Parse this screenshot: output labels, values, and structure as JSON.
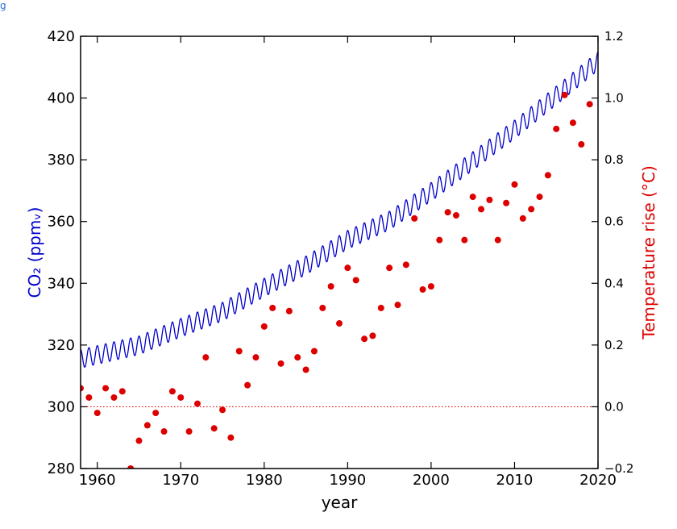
{
  "caption": "g",
  "chart_data": {
    "type": "line",
    "xlabel": "year",
    "ylabel_left": "CO₂ (ppmᵥ)",
    "ylabel_right": "Temperature rise (°C)",
    "xlim": [
      1958,
      2020
    ],
    "ylim_left": [
      280,
      420
    ],
    "ylim_right": [
      -0.2,
      1.2
    ],
    "x_ticks": [
      1960,
      1970,
      1980,
      1990,
      2000,
      2010,
      2020
    ],
    "y_ticks_left": [
      280,
      300,
      320,
      340,
      360,
      380,
      400,
      420
    ],
    "y_ticks_right": [
      -0.2,
      0.0,
      0.2,
      0.4,
      0.6,
      0.8,
      1.0,
      1.2
    ],
    "y_tick_labels_right": [
      "−0.2",
      "0.0",
      "0.2",
      "0.4",
      "0.6",
      "0.8",
      "1.0",
      "1.2"
    ],
    "reference_line": {
      "axis": "right",
      "value": 0.0,
      "style": "dotted",
      "color": "#dd0000"
    },
    "colors": {
      "co2": "#0000cc",
      "temperature": "#dd0000",
      "left_label": "#0000cc",
      "right_label": "#dd0000"
    },
    "series": [
      {
        "axis": "left",
        "style": "line",
        "seasonal_amplitude_ppm": 3,
        "x": [
          1958,
          1960,
          1965,
          1970,
          1975,
          1980,
          1985,
          1990,
          1995,
          2000,
          2005,
          2010,
          2015,
          2020
        ],
        "y": [
          315.5,
          316.8,
          319.9,
          325.6,
          330.8,
          338.6,
          345.8,
          354.1,
          360.3,
          369.6,
          379.6,
          389.8,
          400.8,
          412.0
        ]
      },
      {
        "axis": "right",
        "style": "scatter",
        "x": [
          1958,
          1959,
          1960,
          1961,
          1962,
          1963,
          1964,
          1965,
          1966,
          1967,
          1968,
          1969,
          1970,
          1971,
          1972,
          1973,
          1974,
          1975,
          1976,
          1977,
          1978,
          1979,
          1980,
          1981,
          1982,
          1983,
          1984,
          1985,
          1986,
          1987,
          1988,
          1989,
          1990,
          1991,
          1992,
          1993,
          1994,
          1995,
          1996,
          1997,
          1998,
          1999,
          2000,
          2001,
          2002,
          2003,
          2004,
          2005,
          2006,
          2007,
          2008,
          2009,
          2010,
          2011,
          2012,
          2013,
          2014,
          2015,
          2016,
          2017,
          2018,
          2019
        ],
        "y": [
          0.06,
          0.03,
          -0.02,
          0.06,
          0.03,
          0.05,
          -0.2,
          -0.11,
          -0.06,
          -0.02,
          -0.08,
          0.05,
          0.03,
          -0.08,
          0.01,
          0.16,
          -0.07,
          -0.01,
          -0.1,
          0.18,
          0.07,
          0.16,
          0.26,
          0.32,
          0.14,
          0.31,
          0.16,
          0.12,
          0.18,
          0.32,
          0.39,
          0.27,
          0.45,
          0.41,
          0.22,
          0.23,
          0.32,
          0.45,
          0.33,
          0.46,
          0.61,
          0.38,
          0.39,
          0.54,
          0.63,
          0.62,
          0.54,
          0.68,
          0.64,
          0.67,
          0.54,
          0.66,
          0.72,
          0.61,
          0.64,
          0.68,
          0.75,
          0.9,
          1.01,
          0.92,
          0.85,
          0.98
        ]
      }
    ]
  }
}
